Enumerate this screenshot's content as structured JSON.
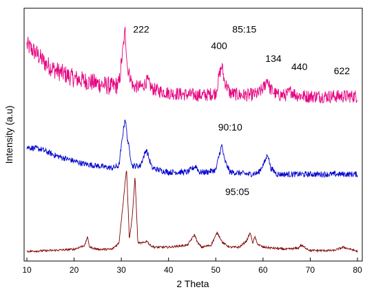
{
  "chart_data": {
    "type": "line",
    "xlabel": "2 Theta",
    "ylabel": "Intensity (a.u)",
    "xlim": [
      10,
      80
    ],
    "x_ticks": [
      10,
      20,
      30,
      40,
      50,
      60,
      70,
      80
    ],
    "grid": false,
    "series": [
      {
        "name": "85:15",
        "color": "#e6007e",
        "x": [
          10,
          12,
          14,
          16,
          18,
          20,
          22,
          24,
          26,
          28,
          29.5,
          30.3,
          30.8,
          31.3,
          32.5,
          34.5,
          35.5,
          36.5,
          38,
          40,
          42,
          44,
          46,
          48,
          50,
          50.8,
          51.3,
          51.8,
          53,
          55,
          57,
          59,
          60.3,
          60.9,
          61.5,
          63,
          65,
          66,
          67,
          69,
          71,
          73,
          75,
          77,
          79,
          80
        ],
        "y": [
          5.05,
          4.85,
          4.6,
          4.45,
          4.35,
          4.25,
          4.2,
          4.15,
          4.1,
          4.05,
          4.1,
          4.9,
          5.4,
          4.5,
          4.05,
          4.05,
          4.2,
          4.0,
          3.95,
          3.9,
          3.88,
          3.86,
          3.85,
          3.85,
          3.9,
          4.35,
          4.55,
          4.2,
          3.9,
          3.85,
          3.85,
          3.88,
          4.05,
          4.25,
          4.0,
          3.85,
          3.85,
          3.95,
          3.85,
          3.82,
          3.82,
          3.82,
          3.82,
          3.82,
          3.82,
          3.82
        ]
      },
      {
        "name": "90:10",
        "color": "#0000cc",
        "x": [
          10,
          13,
          16,
          19,
          22,
          25,
          28,
          29.5,
          30.3,
          30.8,
          31.3,
          32.3,
          34,
          35.3,
          35.8,
          36.5,
          38,
          40,
          42,
          44,
          45.8,
          46.5,
          48,
          50,
          50.8,
          51.3,
          51.8,
          53,
          55,
          57,
          59,
          60.4,
          61.0,
          61.6,
          63,
          65,
          68,
          71,
          74,
          77,
          80
        ],
        "y": [
          2.6,
          2.55,
          2.4,
          2.3,
          2.2,
          2.15,
          2.1,
          2.15,
          2.9,
          3.3,
          2.8,
          2.15,
          2.15,
          2.55,
          2.35,
          2.1,
          2.05,
          2.0,
          2.0,
          2.0,
          2.15,
          2.0,
          2.0,
          2.05,
          2.45,
          2.65,
          2.3,
          2.0,
          1.98,
          1.95,
          1.98,
          2.25,
          2.45,
          2.1,
          1.95,
          1.95,
          1.95,
          1.95,
          1.95,
          1.95,
          1.95
        ]
      },
      {
        "name": "95:05",
        "color": "#800000",
        "x": [
          10,
          15,
          20,
          22.3,
          22.8,
          23.3,
          25,
          28,
          29.5,
          30.5,
          31.1,
          31.7,
          32.3,
          32.9,
          33.5,
          34.5,
          35.5,
          36,
          37,
          40,
          44,
          45.5,
          46.2,
          47,
          49,
          50.3,
          50.8,
          51.5,
          53,
          55,
          56.5,
          57.3,
          57.8,
          58.3,
          58.7,
          59.2,
          60,
          62,
          65,
          67.5,
          68,
          70,
          75,
          77,
          80
        ],
        "y": [
          0.1,
          0.12,
          0.15,
          0.25,
          0.45,
          0.2,
          0.15,
          0.15,
          0.3,
          1.4,
          2.1,
          0.4,
          0.9,
          1.9,
          0.3,
          0.3,
          0.35,
          0.25,
          0.2,
          0.2,
          0.25,
          0.5,
          0.3,
          0.2,
          0.25,
          0.55,
          0.45,
          0.3,
          0.2,
          0.2,
          0.35,
          0.55,
          0.3,
          0.45,
          0.3,
          0.25,
          0.2,
          0.18,
          0.15,
          0.18,
          0.25,
          0.12,
          0.12,
          0.2,
          0.1
        ]
      }
    ],
    "annotations": [
      {
        "text": "222",
        "x": 32.5,
        "y": 5.35
      },
      {
        "text": "85:15",
        "x": 53.5,
        "y": 5.35
      },
      {
        "text": "400",
        "x": 49.0,
        "y": 4.95
      },
      {
        "text": "134",
        "x": 60.5,
        "y": 4.65
      },
      {
        "text": "440",
        "x": 66.0,
        "y": 4.45
      },
      {
        "text": "622",
        "x": 75.0,
        "y": 4.35
      },
      {
        "text": "90:10",
        "x": 50.5,
        "y": 3.0
      },
      {
        "text": "95:05",
        "x": 52.0,
        "y": 1.45
      }
    ]
  }
}
